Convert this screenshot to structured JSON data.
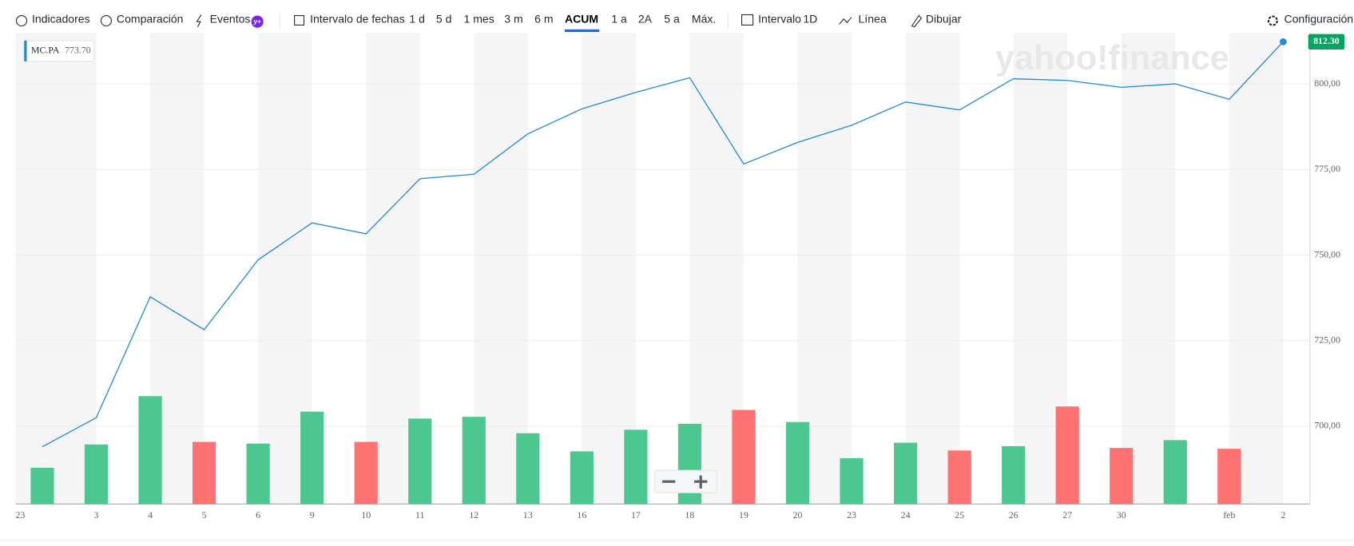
{
  "toolbar": {
    "items": [
      "Indicadores",
      "Comparación",
      "Eventos",
      "Intervalo de fechas",
      "1 d",
      "5 d",
      "1 mes",
      "3 m",
      "6 m",
      "ACUM",
      "1 a",
      "2A",
      "5 a",
      "Máx.",
      "Intervalo",
      "1D",
      "Línea",
      "Dibujar",
      "Configuración"
    ],
    "badge": "y+"
  },
  "watermark": "yahoo!finance",
  "chart_data": {
    "type": "line",
    "year_label": "23",
    "categories": [
      null,
      "3",
      "4",
      "5",
      "6",
      "9",
      "10",
      "11",
      "12",
      "13",
      "16",
      "17",
      "18",
      "19",
      "20",
      "23",
      "24",
      "25",
      "26",
      "27",
      "30",
      null,
      "feb",
      "2"
    ],
    "series": [
      {
        "name": "MC.PA",
        "color": "#1f8ad6",
        "values": [
          694.0,
          702.5,
          737.8,
          728.2,
          748.6,
          759.4,
          756.2,
          772.3,
          773.6,
          785.4,
          792.7,
          797.5,
          801.8,
          776.6,
          782.9,
          787.9,
          794.7,
          792.4,
          801.5,
          801.0,
          799.0,
          800.0,
          795.5,
          812.3
        ]
      }
    ],
    "legend_value_label": "773.70",
    "last_value_label": "812.30",
    "volume": {
      "values": [
        42,
        69,
        125,
        72,
        70,
        107,
        72,
        99,
        101,
        82,
        61,
        86,
        93,
        109,
        95,
        53,
        71,
        62,
        67,
        113,
        65,
        74,
        64,
        null
      ],
      "ylim": [
        0,
        200
      ],
      "up_color": "#4cc790",
      "down_color": "#ff7272"
    },
    "ylim": [
      677.3,
      814.9
    ],
    "yticks": [
      {
        "value": 700,
        "label": "700,00"
      },
      {
        "value": 725,
        "label": "725,00"
      },
      {
        "value": 750,
        "label": "750,00"
      },
      {
        "value": 775,
        "label": "775,00"
      },
      {
        "value": 800,
        "label": "800,00"
      }
    ],
    "grid": true
  }
}
